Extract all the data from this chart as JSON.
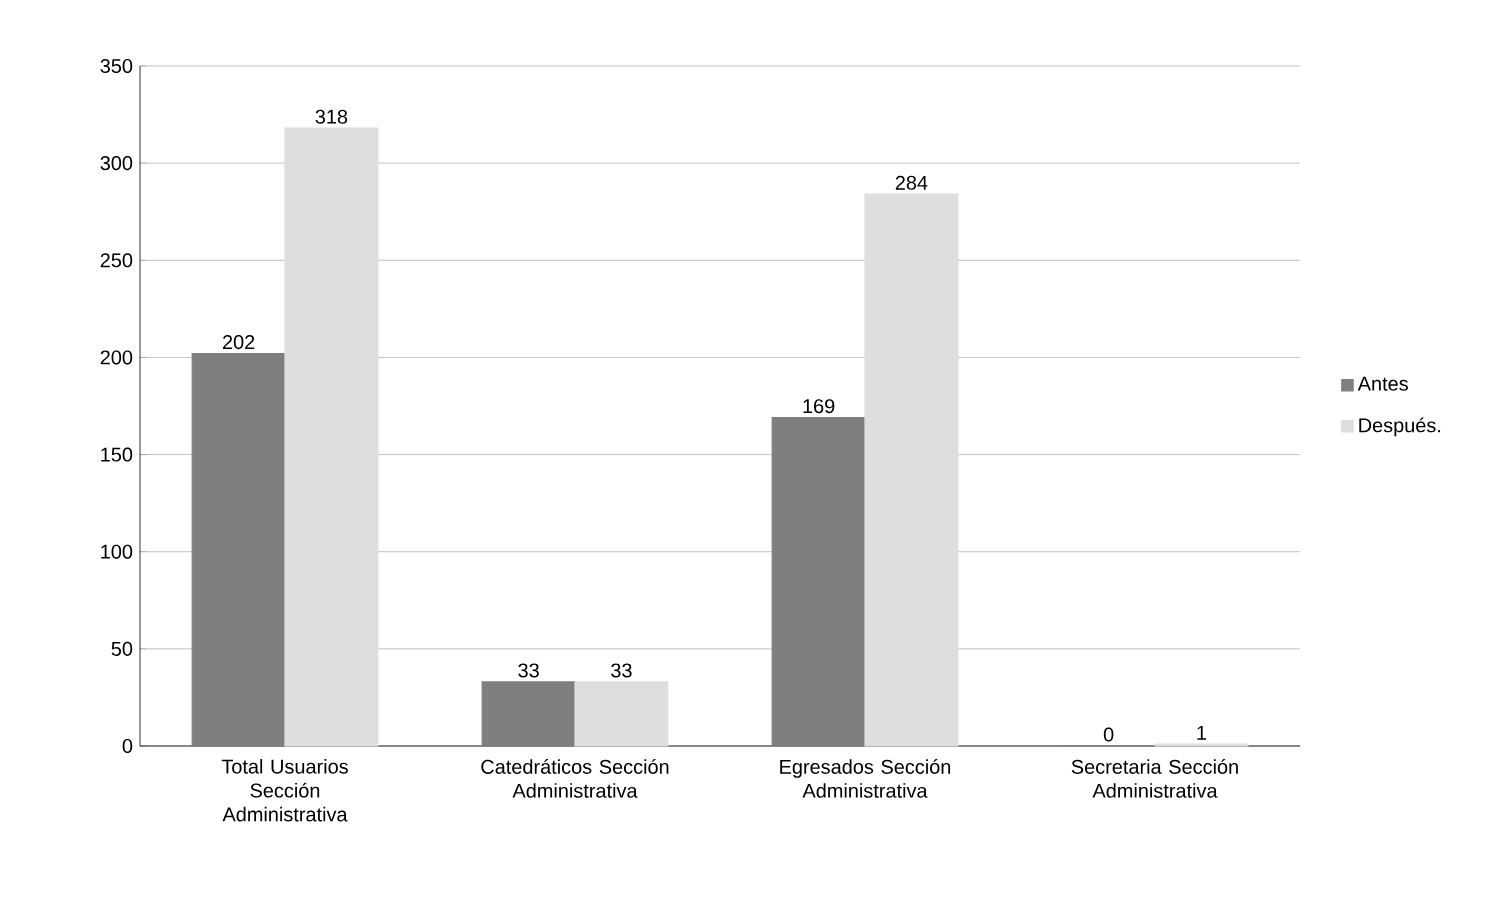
{
  "chart_data": {
    "type": "bar",
    "categories": [
      "Total Usuarios Sección Administrativa",
      "Catedráticos Sección Administrativa",
      "Egresados Sección Administrativa",
      "Secretaria Sección Administrativa"
    ],
    "series": [
      {
        "name": "Antes",
        "color": "#7f7f7f",
        "values": [
          202,
          33,
          169,
          0
        ]
      },
      {
        "name": "Después.",
        "color": "#dedede",
        "values": [
          318,
          33,
          284,
          1
        ]
      }
    ],
    "ylim": [
      0,
      350
    ],
    "yticks": [
      0,
      50,
      100,
      150,
      200,
      250,
      300,
      350
    ],
    "grid": "y",
    "legend": "right",
    "data_labels": true
  }
}
